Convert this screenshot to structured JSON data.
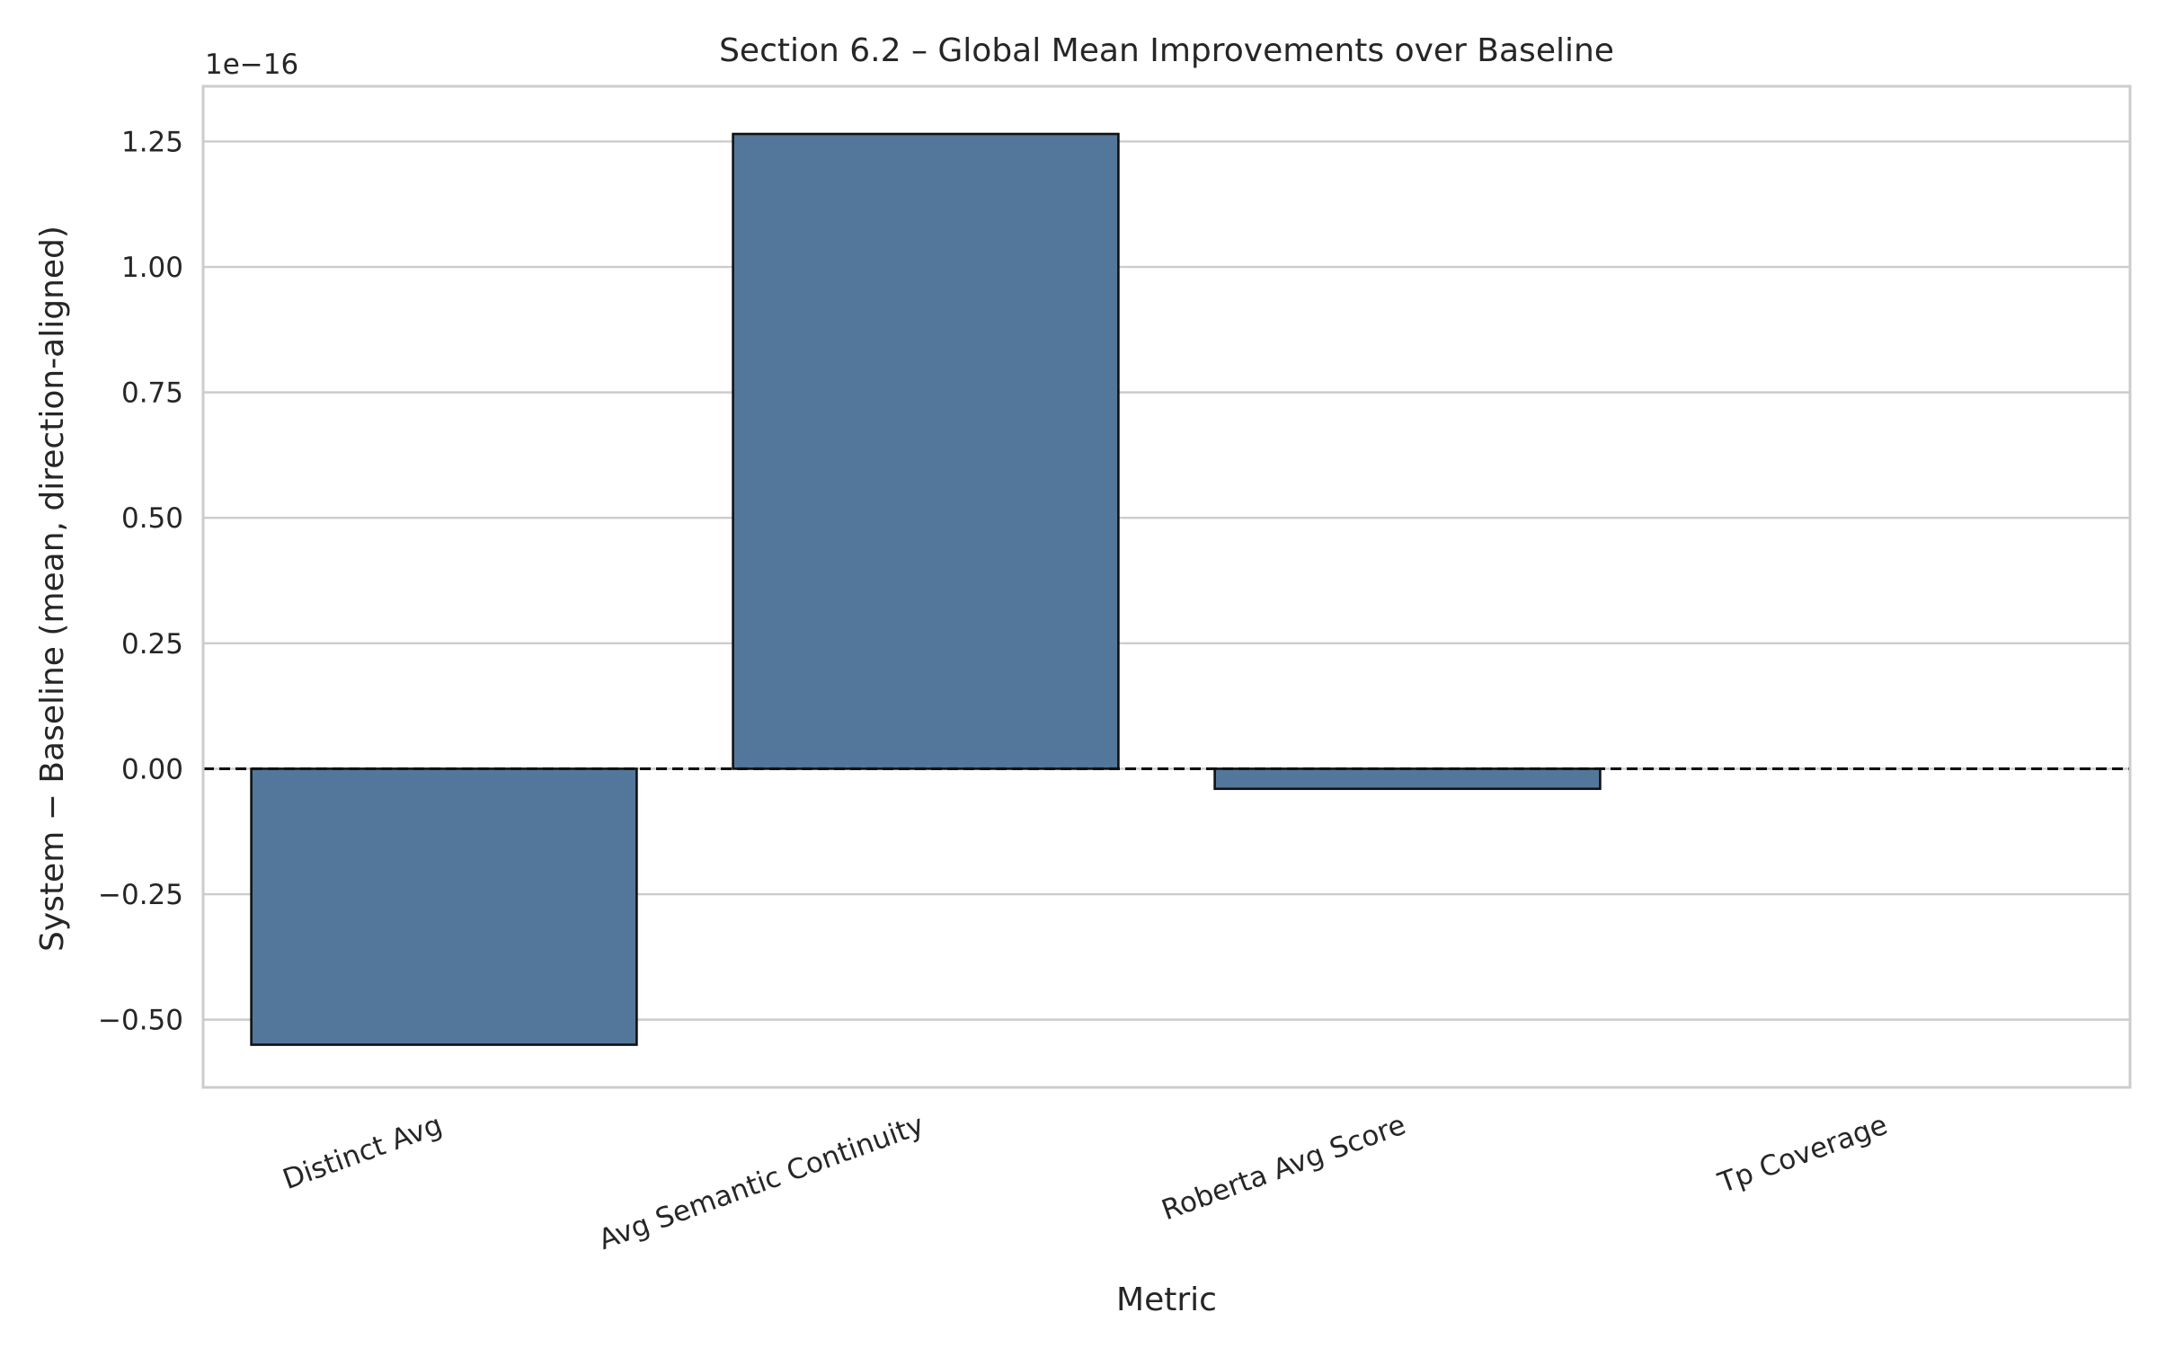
{
  "chart_data": {
    "type": "bar",
    "title": "Section 6.2 – Global Mean Improvements over Baseline",
    "xlabel": "Metric",
    "ylabel": "System − Baseline (mean, direction-aligned)",
    "y_offset_label": "1e−16",
    "y_multiplier": 1e-16,
    "categories": [
      "Distinct Avg",
      "Avg Semantic Continuity",
      "Roberta Avg Score",
      "Tp Coverage"
    ],
    "values": [
      -0.55,
      1.265,
      -0.04,
      0.0
    ],
    "ylim": [
      -0.635,
      1.36
    ],
    "yticks": [
      -0.5,
      -0.25,
      0.0,
      0.25,
      0.5,
      0.75,
      1.0,
      1.25
    ],
    "ytick_labels": [
      "−0.50",
      "−0.25",
      "0.00",
      "0.25",
      "0.50",
      "0.75",
      "1.00",
      "1.25"
    ],
    "grid": true,
    "reference_line": {
      "y": 0,
      "style": "dashed"
    },
    "colors": {
      "bar": "#52779b",
      "bar_edge": "#111111",
      "grid": "#cccccc",
      "frame": "#cccccc",
      "zero_line": "#111111"
    }
  }
}
